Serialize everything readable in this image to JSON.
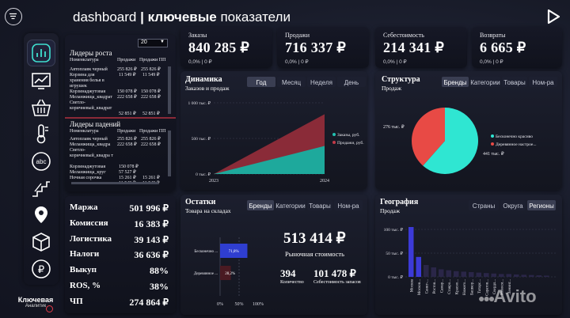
{
  "header": {
    "title_prefix": "dashboard",
    "separator": "|",
    "title_bold": "ключевые",
    "title_rest": "показатели"
  },
  "sidebar": {
    "icons": [
      "menu-icon",
      "dashboard-icon",
      "line-chart-icon",
      "basket-icon",
      "thermometer-icon",
      "abc-icon",
      "stairs-icon",
      "location-icon",
      "box-icon",
      "ruble-icon"
    ],
    "brand_line1": "Ключевая",
    "brand_line2": "Аналитик"
  },
  "leaders_growth": {
    "title": "Лидеры роста",
    "dropdown": "20",
    "headers": [
      "Номенклатура",
      "Продажи",
      "Продажи ПП"
    ],
    "rows": [
      [
        "Автоплавк черный",
        "255 826 ₽",
        "255 826 ₽"
      ],
      [
        "Корзина для хранения белья в игрушек",
        "11 549 ₽",
        "11 549 ₽"
      ],
      [
        "Корзинаджутовая",
        "150 078 ₽",
        "150 078 ₽"
      ],
      [
        "Меланжища_квадрат",
        "222 658 ₽",
        "222 658 ₽"
      ],
      [
        "Светло-коричневый_квадрат",
        "",
        ""
      ],
      [
        "",
        "52 851 ₽",
        "52 851 ₽"
      ]
    ]
  },
  "leaders_fall": {
    "title": "Лидеры падений",
    "headers": [
      "Номенклатура",
      "Продажи",
      "Продажи ПП"
    ],
    "rows": [
      [
        "Автоплавк черный",
        "255 826 ₽",
        "255 826 ₽"
      ],
      [
        "Меланжища_квадра",
        "222 658 ₽",
        "222 658 ₽"
      ],
      [
        "Светло-коричневый_квадра т",
        "",
        ""
      ],
      [
        "Корзинаджутовая",
        "150 078 ₽",
        ""
      ],
      [
        "Меланжища_круг",
        "57 527 ₽",
        ""
      ],
      [
        "Ночная сорочка",
        "15 261 ₽",
        "15 261 ₽"
      ],
      [
        "",
        "11 549 ₽",
        "11 549 ₽"
      ]
    ]
  },
  "kpis": [
    {
      "title": "Заказы",
      "value": "840 285 ₽",
      "sub": "0,0% | 0 ₽"
    },
    {
      "title": "Продажи",
      "value": "716 337 ₽",
      "sub": "0,0% | 0 ₽"
    },
    {
      "title": "Себестоимость",
      "value": "214 341 ₽",
      "sub": "0,0% | 0 ₽"
    },
    {
      "title": "Возвраты",
      "value": "6 665 ₽",
      "sub": "0,0% | 0 ₽"
    }
  ],
  "metrics": [
    {
      "label": "Маржа",
      "value": "501 996 ₽"
    },
    {
      "label": "Комиссия",
      "value": "16 383 ₽"
    },
    {
      "label": "Логистика",
      "value": "39 143 ₽"
    },
    {
      "label": "Налоги",
      "value": "36 636 ₽"
    },
    {
      "label": "Выкуп",
      "value": "88%"
    },
    {
      "label": "ROS, %",
      "value": "38%"
    },
    {
      "label": "ЧП",
      "value": "274 864 ₽"
    }
  ],
  "dynamics": {
    "title": "Динамика",
    "subtitle": "Заказов и продаж",
    "tabs": [
      "Год",
      "Месяц",
      "Неделя",
      "День"
    ],
    "active_tab": 0,
    "legend": [
      "Заказы, руб.",
      "Продажи, руб."
    ],
    "y_ticks": [
      "1 000 тыс. ₽",
      "500 тыс. ₽",
      "0 тыс. ₽"
    ],
    "x_ticks": [
      "2023",
      "2024"
    ]
  },
  "structure": {
    "title": "Структура",
    "subtitle": "Продаж",
    "tabs": [
      "Бренды",
      "Категории",
      "Товары",
      "Ном-ра"
    ],
    "active_tab": 0,
    "label_left": "276 тыс. ₽",
    "label_right": "441 тыс. ₽",
    "legend": [
      "Бесконечно красиво",
      "Деревянное настрое..."
    ]
  },
  "stock": {
    "title": "Остатки",
    "subtitle": "Товара на складах",
    "tabs": [
      "Бренды",
      "Категории",
      "Товары",
      "Ном-ра"
    ],
    "active_tab": 0,
    "bar_labels": [
      "Бесконечно ...",
      "Деревянное ..."
    ],
    "bar_values": [
      "71,8%",
      "28,2%"
    ],
    "x_ticks": [
      "0%",
      "50%",
      "100%"
    ],
    "big_value": "513 414 ₽",
    "big_caption": "Рыночная стоимость",
    "count_value": "394",
    "count_caption": "Количество",
    "cost_value": "101 478 ₽",
    "cost_caption": "Себестоимость запасов"
  },
  "geo": {
    "title": "География",
    "subtitle": "Продаж",
    "tabs": [
      "Страны",
      "Округа",
      "Регионы"
    ],
    "active_tab": 2,
    "y_ticks": [
      "100 тыс. ₽",
      "50 тыс. ₽",
      "0 тыс. ₽"
    ],
    "x_labels": [
      "Москва",
      "Москов...",
      "Санкт-...",
      "Ростов...",
      "Самар...",
      "Ставро...",
      "Красно...",
      "Нижего...",
      "Башкор...",
      "Татарс...",
      "Саратов...",
      "Свердл...",
      "Новоси...",
      "Ленинг..."
    ]
  },
  "watermark": "Avito",
  "chart_data": [
    {
      "type": "area",
      "title": "Динамика",
      "x": [
        "2023",
        "2024"
      ],
      "series": [
        {
          "name": "Заказы, руб.",
          "values": [
            0,
            840
          ]
        },
        {
          "name": "Продажи, руб.",
          "values": [
            0,
            716
          ]
        }
      ],
      "ylabel": "тыс. ₽",
      "ylim": [
        0,
        1000
      ],
      "colors": {
        "Заказы, руб.": "#22c1b1",
        "Продажи, руб.": "#c23a48"
      }
    },
    {
      "type": "pie",
      "title": "Структура",
      "categories": [
        "Бесконечно красиво",
        "Деревянное настрое..."
      ],
      "values": [
        441,
        276
      ],
      "colors": [
        "#2fe6d2",
        "#e84a45"
      ]
    },
    {
      "type": "bar",
      "title": "Остатки",
      "categories": [
        "Бесконечно ...",
        "Деревянное ..."
      ],
      "values": [
        71.8,
        28.2
      ],
      "xlim": [
        0,
        100
      ],
      "colors": [
        "#2f3ed0",
        "#4a1a22"
      ]
    },
    {
      "type": "bar",
      "title": "География",
      "categories": [
        "Москва",
        "Москов...",
        "Санкт-...",
        "Ростов...",
        "Самар...",
        "Ставро...",
        "Красно...",
        "Нижего...",
        "Башкор...",
        "Татарс...",
        "Саратов...",
        "Свердл...",
        "Новоси...",
        "Ленинг..."
      ],
      "values": [
        105,
        42,
        25,
        20,
        16,
        14,
        12,
        11,
        10,
        9,
        8,
        7,
        6,
        6
      ],
      "ylim": [
        0,
        110
      ],
      "colors": [
        "#3c3ad8",
        "#3c3ad8",
        "#2a2648"
      ]
    }
  ]
}
